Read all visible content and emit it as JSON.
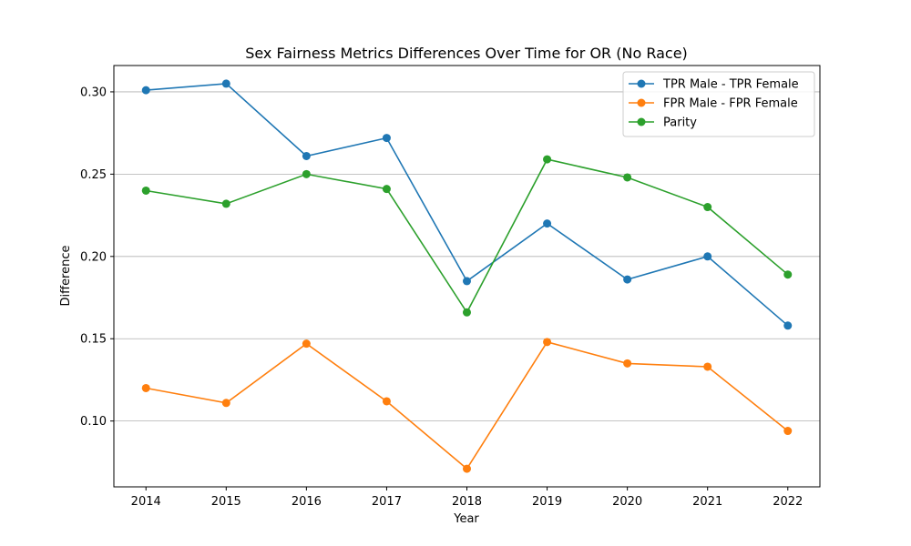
{
  "chart_data": {
    "type": "line",
    "title": "Sex Fairness Metrics Differences Over Time for OR (No Race)",
    "xlabel": "Year",
    "ylabel": "Difference",
    "x": [
      2014,
      2015,
      2016,
      2017,
      2018,
      2019,
      2020,
      2021,
      2022
    ],
    "x_tick_labels": [
      "2014",
      "2015",
      "2016",
      "2017",
      "2018",
      "2019",
      "2020",
      "2021",
      "2022"
    ],
    "ylim": [
      0.06,
      0.316
    ],
    "y_ticks": [
      0.1,
      0.15,
      0.2,
      0.25,
      0.3
    ],
    "y_tick_labels": [
      "0.10",
      "0.15",
      "0.20",
      "0.25",
      "0.30"
    ],
    "grid": "horizontal",
    "legend_position": "top-right",
    "series": [
      {
        "name": "TPR Male - TPR Female",
        "color": "#1f77b4",
        "values": [
          0.301,
          0.305,
          0.261,
          0.272,
          0.185,
          0.22,
          0.186,
          0.2,
          0.158
        ]
      },
      {
        "name": "FPR Male - FPR Female",
        "color": "#ff7f0e",
        "values": [
          0.12,
          0.111,
          0.147,
          0.112,
          0.071,
          0.148,
          0.135,
          0.133,
          0.094
        ]
      },
      {
        "name": "Parity",
        "color": "#2ca02c",
        "values": [
          0.24,
          0.232,
          0.25,
          0.241,
          0.166,
          0.259,
          0.248,
          0.23,
          0.189
        ]
      }
    ]
  }
}
